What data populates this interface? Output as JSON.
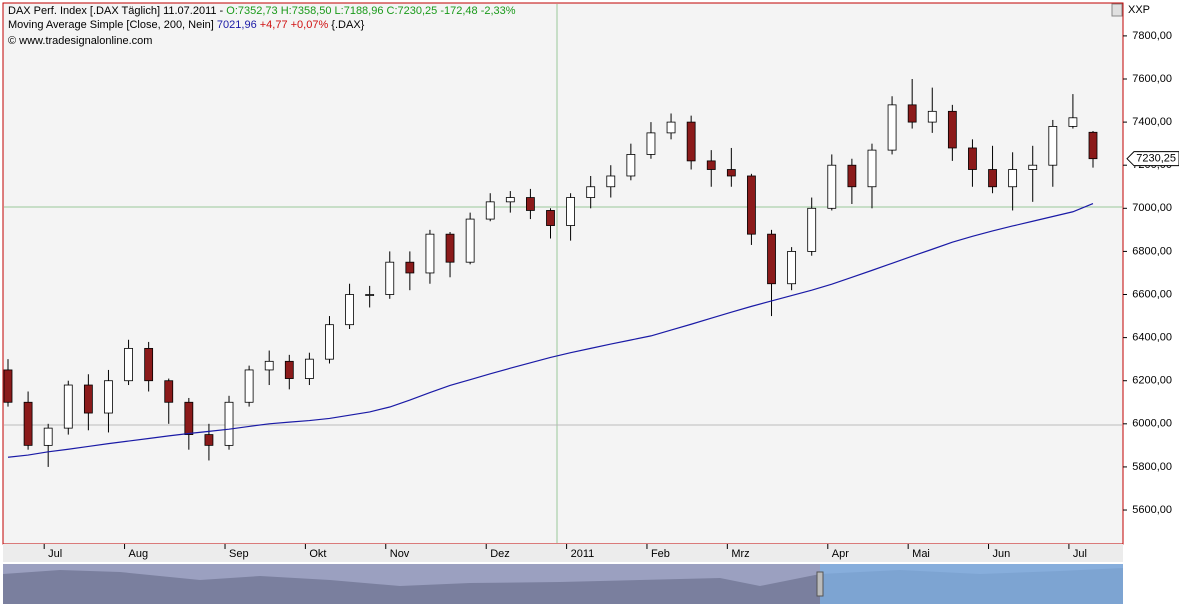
{
  "chart_data": {
    "type": "candlestick",
    "title": "DAX Perf. Index [.DAX  Täglich] 11.07.2011 - ",
    "title_values": "O:7352,73 H:7358,50 L:7188,96 C:7230,25 -172,48 -2,33%",
    "indicator": "Moving Average Simple [Close, 200, Nein] ",
    "indicator_value": "7021,96",
    "indicator_change": " +4,77 +0,07%",
    "indicator_symbol": " {.DAX}",
    "source": "© www.tradesignalonline.com",
    "corner_label": "XXP",
    "last_label": "7230,25",
    "up_color": "#ffffff",
    "down_color": "#8b1a1a",
    "categories": [
      null,
      null,
      "Jul",
      null,
      null,
      null,
      "Aug",
      null,
      null,
      null,
      null,
      "Sep",
      null,
      null,
      null,
      "Okt",
      null,
      null,
      null,
      "Nov",
      null,
      null,
      null,
      null,
      "Dez",
      null,
      null,
      null,
      "2011",
      null,
      null,
      null,
      "Feb",
      null,
      null,
      null,
      "Mrz",
      null,
      null,
      null,
      null,
      "Apr",
      null,
      null,
      null,
      "Mai",
      null,
      null,
      null,
      "Jun",
      null,
      null,
      null,
      "Jul",
      null
    ],
    "open": [
      6250,
      6100,
      5900,
      5980,
      6180,
      6050,
      6200,
      6350,
      6200,
      6100,
      5950,
      5900,
      6100,
      6250,
      6290,
      6210,
      6300,
      6460,
      6600,
      6600,
      6750,
      6700,
      6880,
      6750,
      6950,
      7030,
      7050,
      6990,
      6920,
      7050,
      7100,
      7150,
      7250,
      7350,
      7400,
      7220,
      7180,
      7150,
      6880,
      6650,
      6800,
      7000,
      7200,
      7100,
      7270,
      7480,
      7400,
      7450,
      7280,
      7180,
      7100,
      7180,
      7200,
      7380,
      7352.73
    ],
    "high": [
      6300,
      6150,
      6000,
      6200,
      6230,
      6250,
      6390,
      6380,
      6210,
      6120,
      6000,
      6130,
      6270,
      6340,
      6320,
      6330,
      6500,
      6650,
      6640,
      6800,
      6800,
      6900,
      6890,
      6980,
      7070,
      7080,
      7090,
      7000,
      7070,
      7150,
      7200,
      7300,
      7400,
      7440,
      7430,
      7270,
      7280,
      7160,
      6900,
      6820,
      7050,
      7250,
      7230,
      7300,
      7520,
      7600,
      7560,
      7480,
      7320,
      7290,
      7260,
      7290,
      7410,
      7530,
      7358.5
    ],
    "low": [
      6080,
      5880,
      5800,
      5950,
      5970,
      5960,
      6180,
      6150,
      6000,
      5880,
      5830,
      5880,
      6080,
      6180,
      6160,
      6180,
      6280,
      6440,
      6540,
      6580,
      6620,
      6650,
      6680,
      6740,
      6940,
      6980,
      6950,
      6860,
      6850,
      7000,
      7050,
      7130,
      7230,
      7320,
      7180,
      7100,
      7100,
      6830,
      6500,
      6620,
      6780,
      6990,
      7020,
      7000,
      7250,
      7370,
      7350,
      7220,
      7100,
      7070,
      6990,
      7030,
      7100,
      7370,
      7188.96
    ],
    "close": [
      6100,
      5900,
      5980,
      6180,
      6050,
      6200,
      6350,
      6200,
      6100,
      5950,
      5900,
      6100,
      6250,
      6290,
      6210,
      6300,
      6460,
      6600,
      6600,
      6750,
      6700,
      6880,
      6750,
      6950,
      7030,
      7050,
      6990,
      6920,
      7050,
      7100,
      7150,
      7250,
      7350,
      7400,
      7220,
      7180,
      7150,
      6880,
      6650,
      6800,
      7000,
      7200,
      7100,
      7270,
      7480,
      7400,
      7450,
      7280,
      7180,
      7100,
      7180,
      7200,
      7380,
      7420,
      7230.25
    ],
    "sma": {
      "color": "#1a1aa6",
      "values": [
        5845,
        5855,
        5870,
        5882,
        5895,
        5908,
        5920,
        5932,
        5944,
        5955,
        5965,
        5975,
        5988,
        6000,
        6008,
        6015,
        6025,
        6040,
        6055,
        6078,
        6110,
        6145,
        6178,
        6205,
        6232,
        6258,
        6283,
        6308,
        6330,
        6350,
        6370,
        6389,
        6408,
        6435,
        6462,
        6490,
        6518,
        6545,
        6570,
        6595,
        6620,
        6648,
        6680,
        6712,
        6745,
        6778,
        6810,
        6843,
        6870,
        6895,
        6918,
        6940,
        6962,
        6984,
        7021.96
      ]
    },
    "ylim": [
      5447,
      7948
    ],
    "yticks": [
      {
        "value": 5600,
        "label": "5600,00"
      },
      {
        "value": 5800,
        "label": "5800,00"
      },
      {
        "value": 6000,
        "label": "6000,00"
      },
      {
        "value": 6200,
        "label": "6200,00"
      },
      {
        "value": 6400,
        "label": "6400,00"
      },
      {
        "value": 6600,
        "label": "6600,00"
      },
      {
        "value": 6800,
        "label": "6800,00"
      },
      {
        "value": 7000,
        "label": "7000,00"
      },
      {
        "value": 7200,
        "label": "7200,00"
      },
      {
        "value": 7400,
        "label": "7400,00"
      },
      {
        "value": 7600,
        "label": "7600,00"
      },
      {
        "value": 7800,
        "label": "7800,00"
      }
    ]
  }
}
